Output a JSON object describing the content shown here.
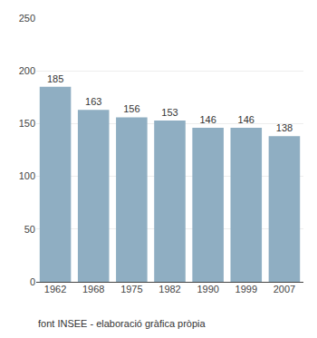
{
  "chart_data": {
    "type": "bar",
    "categories": [
      "1962",
      "1968",
      "1975",
      "1982",
      "1990",
      "1999",
      "2007"
    ],
    "values": [
      185,
      163,
      156,
      153,
      146,
      146,
      138
    ],
    "color": "#8faeC2",
    "ylim": [
      0,
      250
    ],
    "yticks": [
      0,
      50,
      100,
      150,
      200,
      250
    ],
    "grid": true,
    "data_labels": true,
    "annotations": [
      "font INSEE - elaboració gràfica pròpia"
    ]
  }
}
